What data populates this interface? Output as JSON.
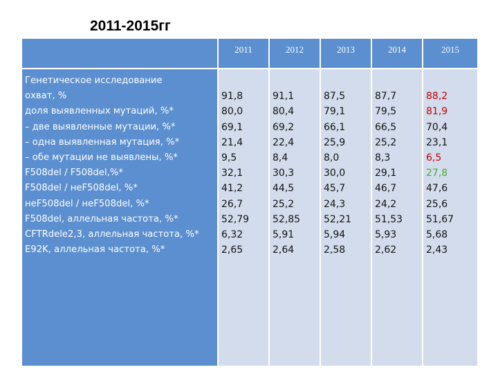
{
  "title": "2011-2015гг",
  "years": [
    "2011",
    "2012",
    "2013",
    "2014",
    "2015"
  ],
  "labels": [
    "Генетическое исследование",
    "охват, %",
    "доля выявленных мутаций, %*",
    "– две выявленные мутации, %*",
    "– одна выявленная мутация, %*",
    "– обе мутации не выявлены, %*",
    "F508del / F508del,%*",
    "F508del / неF508del, %*",
    "неF508del / неF508del, %*",
    "F508del, аллельная частота, %*",
    "CFTRdele2,3, аллельная частота, %*",
    "E92K, аллельная частота, %*"
  ],
  "columns": [
    {
      "year": "2011",
      "values": [
        "91,8",
        "80,0",
        "69,1",
        "21,4",
        "9,5",
        "32,1",
        "41,2",
        "26,7",
        "52,79",
        "6,32",
        "2,65"
      ]
    },
    {
      "year": "2012",
      "values": [
        "91,1",
        "80,4",
        "69,2",
        "22,4",
        "8,4",
        "30,3",
        "44,5",
        "25,2",
        "52,85",
        "5,91",
        "2,64"
      ]
    },
    {
      "year": "2013",
      "values": [
        "87,5",
        "79,1",
        "66,1",
        "25,9",
        "8,0",
        "30,0",
        "45,7",
        "24,3",
        "52,21",
        "5,94",
        "2,58"
      ]
    },
    {
      "year": "2014",
      "values": [
        "87,7",
        "79,5",
        "66,5",
        "25,2",
        "8,3",
        "29,1",
        "46,7",
        "24,2",
        "51,53",
        "5,93",
        "2,62"
      ]
    },
    {
      "year": "2015",
      "values": [
        "88,2",
        "81,9",
        "70,4",
        "23,1",
        "6,5",
        "27,8",
        "47,6",
        "25,6",
        "51,67",
        "5,68",
        "2,43"
      ]
    }
  ],
  "highlight_colors": {
    "red": "#c00000",
    "green": "#4ea72e"
  },
  "highlights_2015": {
    "0": "red",
    "1": "red",
    "4": "red",
    "5": "green"
  }
}
